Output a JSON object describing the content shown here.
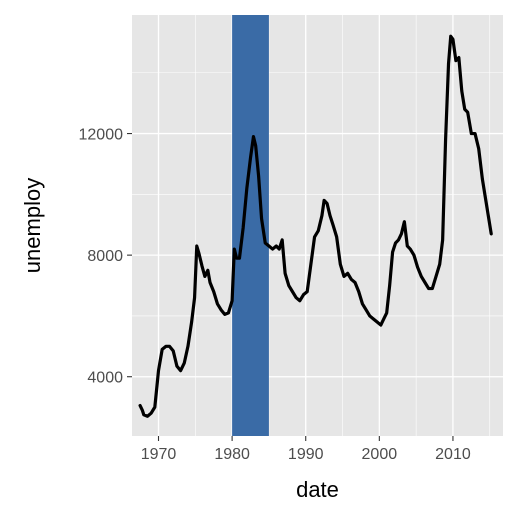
{
  "chart_data": {
    "type": "line",
    "xlabel": "date",
    "ylabel": "unemploy",
    "x_unit": "year",
    "xlim": [
      1966.4,
      2016.8
    ],
    "ylim": [
      2050,
      15900
    ],
    "x_ticks": [
      1970,
      1980,
      1990,
      2000,
      2010
    ],
    "x_tick_labels": [
      "1970",
      "1980",
      "1990",
      "2000",
      "2010"
    ],
    "x_minor_ticks": [
      1975,
      1985,
      1995,
      2005,
      2015
    ],
    "y_ticks": [
      4000,
      8000,
      12000
    ],
    "y_tick_labels": [
      "4000",
      "8000",
      "12000"
    ],
    "y_minor_ticks": [
      6000,
      10000,
      14000
    ],
    "grid": true,
    "highlight_band": {
      "x_start": 1980,
      "x_end": 1985,
      "color": "#3A6BA6"
    },
    "colors": {
      "panel": "#E6E6E6",
      "grid": "#FFFFFF",
      "line": "#000000"
    },
    "series": [
      {
        "x": [
          1967.5,
          1967.8,
          1968.0,
          1968.5,
          1969.0,
          1969.5,
          1970.0,
          1970.5,
          1971.0,
          1971.5,
          1972.0,
          1972.5,
          1973.0,
          1973.5,
          1974.0,
          1974.5,
          1974.9,
          1975.2,
          1975.5,
          1975.9,
          1976.3,
          1976.7,
          1977.0,
          1977.5,
          1978.0,
          1978.5,
          1979.0,
          1979.5,
          1980.0,
          1980.3,
          1980.6,
          1981.0,
          1981.5,
          1982.0,
          1982.5,
          1982.9,
          1983.2,
          1983.6,
          1984.0,
          1984.5,
          1985.0,
          1985.5,
          1986.0,
          1986.4,
          1986.8,
          1987.2,
          1987.7,
          1988.2,
          1988.7,
          1989.2,
          1989.7,
          1990.2,
          1990.7,
          1991.2,
          1991.7,
          1992.2,
          1992.5,
          1992.9,
          1993.3,
          1993.7,
          1994.2,
          1994.7,
          1995.2,
          1995.7,
          1996.2,
          1996.7,
          1997.2,
          1997.7,
          1998.2,
          1998.7,
          1999.2,
          1999.7,
          2000.2,
          2000.6,
          2001.0,
          2001.4,
          2001.8,
          2002.2,
          2002.6,
          2003.0,
          2003.4,
          2003.8,
          2004.2,
          2004.7,
          2005.2,
          2005.7,
          2006.2,
          2006.7,
          2007.2,
          2007.7,
          2008.2,
          2008.6,
          2009.0,
          2009.4,
          2009.7,
          2010.0,
          2010.4,
          2010.8,
          2011.2,
          2011.6,
          2012.0,
          2012.5,
          2013.0,
          2013.5,
          2014.0,
          2014.4,
          2014.8,
          2015.2
        ],
        "values": [
          3050,
          2900,
          2750,
          2700,
          2800,
          3000,
          4200,
          4900,
          5000,
          5000,
          4850,
          4350,
          4200,
          4450,
          5000,
          5800,
          6600,
          8300,
          8050,
          7650,
          7300,
          7500,
          7100,
          6800,
          6400,
          6200,
          6050,
          6100,
          6500,
          8200,
          7900,
          7900,
          8900,
          10200,
          11200,
          11900,
          11600,
          10600,
          9200,
          8400,
          8300,
          8200,
          8300,
          8200,
          8500,
          7400,
          7000,
          6800,
          6600,
          6500,
          6700,
          6800,
          7700,
          8600,
          8800,
          9300,
          9800,
          9700,
          9300,
          9000,
          8600,
          7700,
          7300,
          7400,
          7200,
          7100,
          6800,
          6400,
          6200,
          6000,
          5900,
          5800,
          5700,
          5900,
          6100,
          7000,
          8100,
          8400,
          8500,
          8700,
          9100,
          8300,
          8200,
          8000,
          7600,
          7300,
          7100,
          6900,
          6900,
          7300,
          7700,
          8500,
          11800,
          14300,
          15200,
          15100,
          14400,
          14500,
          13400,
          12800,
          12700,
          12000,
          12000,
          11500,
          10500,
          9900,
          9300,
          8700
        ]
      }
    ]
  }
}
